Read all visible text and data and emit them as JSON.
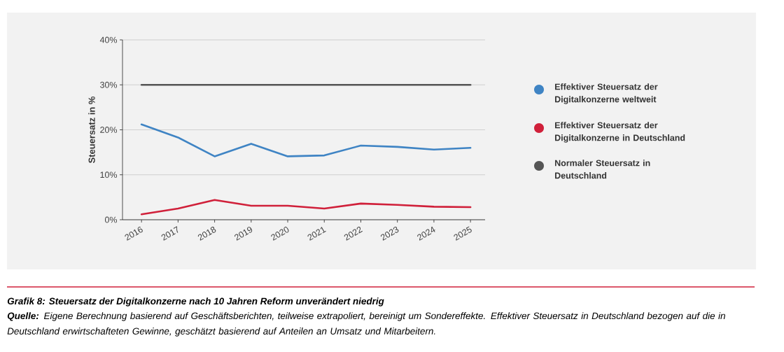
{
  "chart_data": {
    "type": "line",
    "title": "Grafik 8: Steuersatz der Digitalkonzerne nach 10 Jahren Reform unverändert niedrig",
    "ylabel": "Steuersatz in %",
    "categories": [
      "2016",
      "2017",
      "2018",
      "2019",
      "2020",
      "2021",
      "2022",
      "2023",
      "2024",
      "2025"
    ],
    "series": [
      {
        "name": "Effektiver Steuersatz der Digitalkonzerne weltweit",
        "color": "#3f84c4",
        "values": [
          21.2,
          18.3,
          14.1,
          16.9,
          14.1,
          14.3,
          16.5,
          16.2,
          15.6,
          16.0
        ]
      },
      {
        "name": "Effektiver Steuersatz der Digitalkonzerne in Deutschland",
        "color": "#d0203a",
        "values": [
          1.2,
          2.5,
          4.4,
          3.1,
          3.1,
          2.5,
          3.6,
          3.3,
          2.9,
          2.8
        ]
      },
      {
        "name": "Normaler Steuersatz in Deutschland",
        "color": "#555555",
        "values": [
          30,
          30,
          30,
          30,
          30,
          30,
          30,
          30,
          30,
          30
        ]
      }
    ],
    "ylim": [
      0,
      40
    ],
    "yticks": [
      {
        "value": 0,
        "label": "0%"
      },
      {
        "value": 10,
        "label": "10%"
      },
      {
        "value": 20,
        "label": "20%"
      },
      {
        "value": 30,
        "label": "30%"
      },
      {
        "value": 40,
        "label": "40%"
      }
    ],
    "grid": "y",
    "legend": "right",
    "annotations": [
      "**Quelle:** Eigene Berechnung basierend auf Geschäftsberichten, teilweise extrapoliert, bereinigt um Sondereffekte. Effektiver Steuersatz in Deutschland bezogen auf die in Deutschland erwirtschafteten Gewinne, geschätzt basierend auf Anteilen an Umsatz und Mitarbeitern."
    ]
  }
}
